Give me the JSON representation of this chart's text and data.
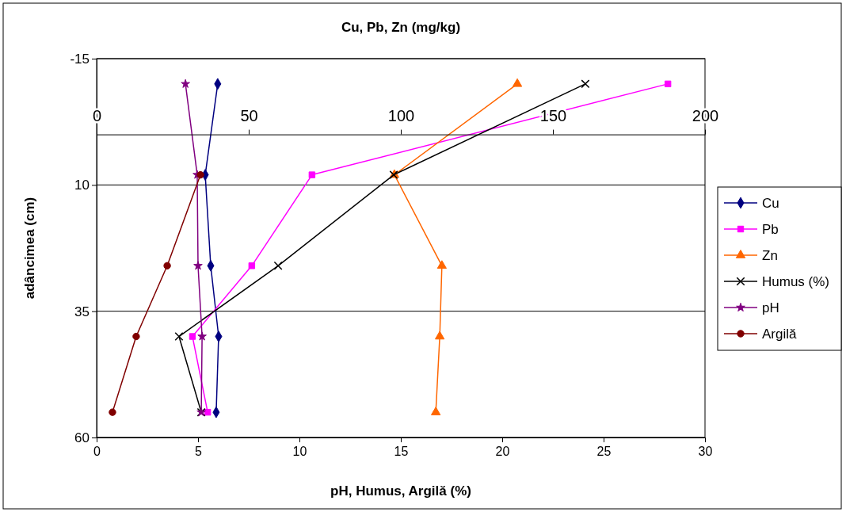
{
  "chart_data": {
    "type": "line",
    "x2label": "Cu, Pb, Zn (mg/kg)",
    "xlabel": "pH, Humus, Argilă (%)",
    "ylabel": "adâncimea (cm)",
    "xlim": [
      0,
      30
    ],
    "xticks": [
      0,
      5,
      10,
      15,
      20,
      25,
      30
    ],
    "x2lim": [
      0,
      200
    ],
    "x2ticks": [
      0,
      50,
      100,
      150,
      200
    ],
    "ylim": [
      60,
      -15
    ],
    "yticks": [
      -15,
      10,
      35,
      60
    ],
    "grid": "y",
    "legend": "right",
    "series": [
      {
        "name": "Cu",
        "color": "#000080",
        "marker": "diamond",
        "axis": "x2",
        "x": [
          39.8,
          35.7,
          37.5,
          40.1,
          39.3
        ],
        "values": [
          -10,
          8,
          26,
          40,
          55
        ]
      },
      {
        "name": "Pb",
        "color": "#ff00ff",
        "marker": "square",
        "axis": "x2",
        "x": [
          187.8,
          70.8,
          51,
          31.5,
          36.5
        ],
        "values": [
          -10,
          8,
          26,
          40,
          55
        ]
      },
      {
        "name": "Zn",
        "color": "#ff6600",
        "marker": "triangle",
        "axis": "x2",
        "x": [
          138.3,
          97.9,
          113.5,
          112.8,
          111.5
        ],
        "values": [
          -10,
          8,
          26,
          40,
          55
        ]
      },
      {
        "name": "Humus (%)",
        "color": "#000000",
        "marker": "cross",
        "x": [
          24.1,
          14.65,
          8.95,
          4.06,
          5.16
        ],
        "values": [
          -10,
          8,
          26,
          40,
          55
        ]
      },
      {
        "name": "pH",
        "color": "#800080",
        "marker": "star",
        "x": [
          4.38,
          4.96,
          5.0,
          5.2,
          5.16
        ],
        "values": [
          -10,
          8,
          26,
          40,
          55
        ]
      },
      {
        "name": "Argilă",
        "color": "#800000",
        "marker": "circle",
        "x": [
          null,
          5.12,
          3.48,
          1.95,
          0.78
        ],
        "values": [
          null,
          8,
          26,
          40,
          55
        ]
      }
    ]
  }
}
